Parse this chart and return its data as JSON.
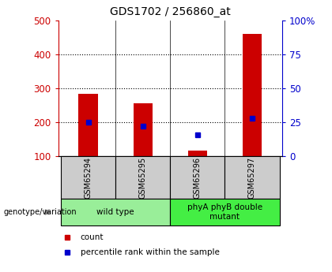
{
  "title": "GDS1702 / 256860_at",
  "samples": [
    "GSM65294",
    "GSM65295",
    "GSM65296",
    "GSM65297"
  ],
  "count_values": [
    285,
    257,
    117,
    460
  ],
  "percentile_values": [
    25.0,
    22.0,
    16.0,
    28.0
  ],
  "ylim_left": [
    100,
    500
  ],
  "ylim_right": [
    0,
    100
  ],
  "yticks_left": [
    100,
    200,
    300,
    400,
    500
  ],
  "yticks_right": [
    0,
    25,
    50,
    75,
    100
  ],
  "yticklabels_right": [
    "0",
    "25",
    "50",
    "75",
    "100%"
  ],
  "bar_color": "#cc0000",
  "square_color": "#0000cc",
  "bar_width": 0.35,
  "groups": [
    {
      "label": "wild type",
      "samples": [
        0,
        1
      ],
      "color": "#99ee99"
    },
    {
      "label": "phyA phyB double\nmutant",
      "samples": [
        2,
        3
      ],
      "color": "#44ee44"
    }
  ],
  "genotype_label": "genotype/variation",
  "legend_items": [
    {
      "color": "#cc0000",
      "label": "count"
    },
    {
      "color": "#0000cc",
      "label": "percentile rank within the sample"
    }
  ],
  "left_axis_color": "#cc0000",
  "right_axis_color": "#0000cc",
  "sample_box_color": "#cccccc",
  "grid_yticks": [
    200,
    300,
    400
  ]
}
